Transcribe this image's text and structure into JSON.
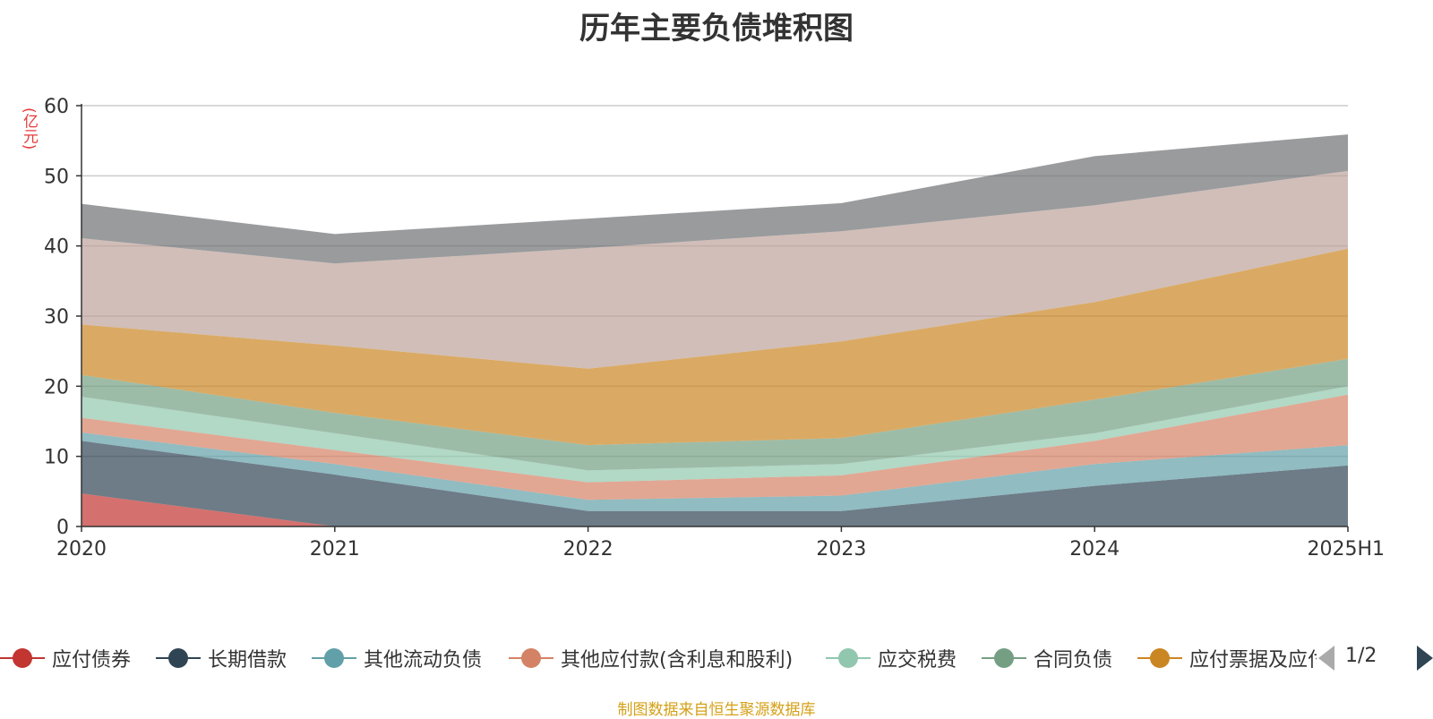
{
  "chart_data": {
    "type": "area",
    "stacked": true,
    "title": "历年主要负债堆积图",
    "unit_label": "(亿元)",
    "categories": [
      "2020",
      "2021",
      "2022",
      "2023",
      "2024",
      "2025H1"
    ],
    "ylim": [
      0,
      60
    ],
    "yticks": [
      0,
      10,
      20,
      30,
      40,
      50,
      60
    ],
    "grid": true,
    "legend_position": "bottom",
    "series": [
      {
        "name": "应付债券",
        "color": "#c23531",
        "values": [
          4.7,
          0,
          0,
          0,
          0,
          0
        ]
      },
      {
        "name": "长期借款",
        "color": "#2f4554",
        "values": [
          7.5,
          7.4,
          2.2,
          2.2,
          5.8,
          8.7
        ]
      },
      {
        "name": "其他流动负债",
        "color": "#61a0a8",
        "values": [
          1.2,
          1.5,
          1.6,
          2.2,
          3.1,
          2.9
        ]
      },
      {
        "name": "其他应付款(含利息和股利)",
        "color": "#d48265",
        "values": [
          2.1,
          2.0,
          2.5,
          2.9,
          3.3,
          7.2
        ]
      },
      {
        "name": "应交税费",
        "color": "#91c7ae",
        "values": [
          3.0,
          2.4,
          1.7,
          1.6,
          1.1,
          1.2
        ]
      },
      {
        "name": "合同负债",
        "color": "#749f83",
        "values": [
          3.1,
          2.9,
          3.6,
          3.7,
          4.8,
          3.9
        ]
      },
      {
        "name": "应付票据及应付账款",
        "color": "#ca8622",
        "values": [
          7.2,
          9.6,
          10.9,
          13.8,
          13.9,
          15.7
        ]
      },
      {
        "name": "",
        "color": "#bda29a",
        "values": [
          12.3,
          11.7,
          17.2,
          15.7,
          13.8,
          11.1
        ]
      },
      {
        "name": "",
        "color": "#6e7074",
        "values": [
          4.9,
          4.2,
          4.2,
          4.0,
          7.0,
          5.2
        ]
      }
    ]
  },
  "legend": {
    "items": [
      {
        "label": "应付债券",
        "color": "#c23531"
      },
      {
        "label": "长期借款",
        "color": "#2f4554"
      },
      {
        "label": "其他流动负债",
        "color": "#61a0a8"
      },
      {
        "label": "其他应付款(含利息和股利)",
        "color": "#d48265"
      },
      {
        "label": "应交税费",
        "color": "#91c7ae"
      },
      {
        "label": "合同负债",
        "color": "#749f83"
      },
      {
        "label": "应付票据及应付账款",
        "color": "#ca8622"
      }
    ],
    "page_indicator": "1/2"
  },
  "source_note": "制图数据来自恒生聚源数据库"
}
